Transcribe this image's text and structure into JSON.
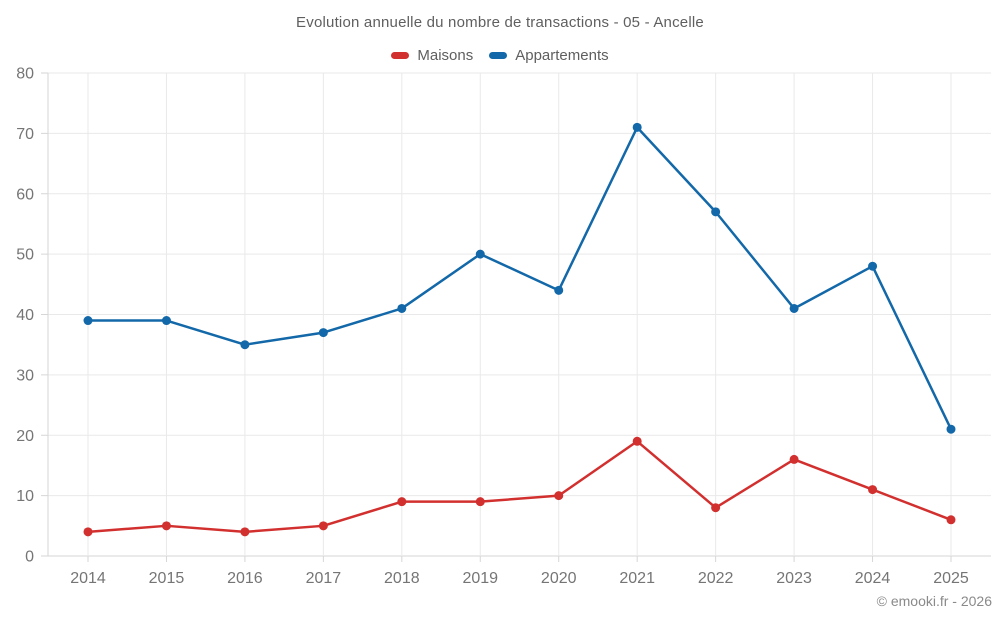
{
  "page": {
    "title": "Evolution annuelle du nombre de transactions - 05 - Ancelle",
    "footer": "© emooki.fr - 2026"
  },
  "chart_data": {
    "type": "line",
    "title": "Evolution annuelle du nombre de transactions - 05 - Ancelle",
    "categories": [
      "2014",
      "2015",
      "2016",
      "2017",
      "2018",
      "2019",
      "2020",
      "2021",
      "2022",
      "2023",
      "2024",
      "2025"
    ],
    "series": [
      {
        "name": "Maisons",
        "color": "#d2302f",
        "values": [
          4,
          5,
          4,
          5,
          9,
          9,
          10,
          19,
          8,
          16,
          11,
          6
        ]
      },
      {
        "name": "Appartements",
        "color": "#1268a8",
        "values": [
          39,
          39,
          35,
          37,
          41,
          50,
          44,
          71,
          57,
          41,
          48,
          21
        ]
      }
    ],
    "xlabel": "",
    "ylabel": "",
    "ylim": [
      0,
      80
    ],
    "ytick_step": 10,
    "grid": true,
    "legend_position": "top",
    "marker": "circle",
    "footer_note": "© emooki.fr - 2026"
  }
}
